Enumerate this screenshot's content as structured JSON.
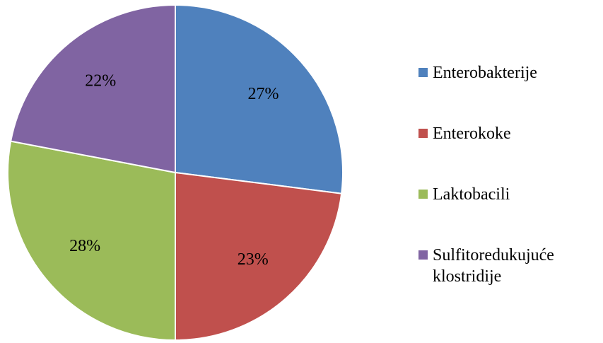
{
  "chart_data": {
    "type": "pie",
    "title": "",
    "slices": [
      {
        "name": "Enterobakterije",
        "value": 27,
        "label": "27%",
        "color": "#4F81BD"
      },
      {
        "name": "Enterokoke",
        "value": 23,
        "label": "23%",
        "color": "#C0504D"
      },
      {
        "name": "Laktobacili",
        "value": 28,
        "label": "28%",
        "color": "#9BBB59"
      },
      {
        "name": "Sulfitoredukujuće klostridije",
        "value": 22,
        "label": "22%",
        "color": "#8064A2"
      }
    ],
    "start_angle_deg": 0,
    "direction": "clockwise",
    "legend_position": "right"
  }
}
